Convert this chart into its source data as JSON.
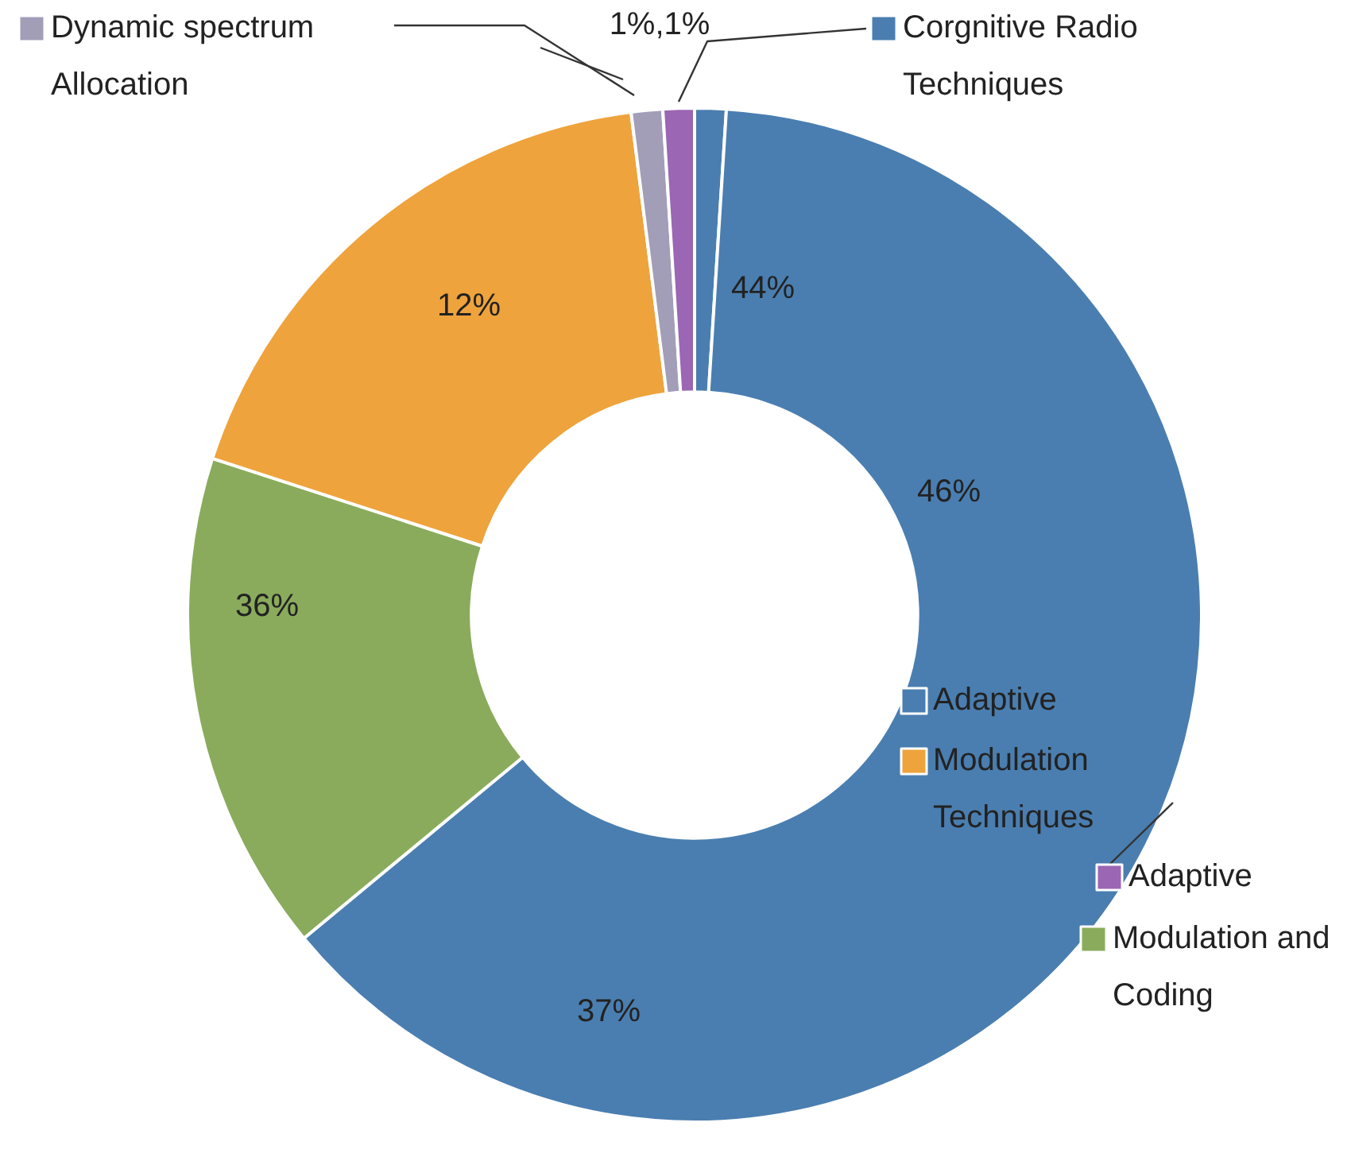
{
  "chart_data": {
    "type": "donut",
    "categories": [
      "Corgnitive Radio Techniques",
      "Adaptive",
      "Modulation and Coding",
      "Modulation Techniques",
      "Dynamic spectrum Allocation",
      "Adaptive"
    ],
    "values": [
      1,
      63,
      16,
      18,
      1,
      1
    ],
    "colors": [
      "#4a7eb0",
      "#4a7eb0",
      "#8aab5c",
      "#eea33c",
      "#a29eb8",
      "#9b66b3"
    ],
    "legend": "right",
    "annotations": [
      "44%",
      "37%",
      "1%,1%",
      "46%",
      "36%",
      "12%"
    ]
  }
}
